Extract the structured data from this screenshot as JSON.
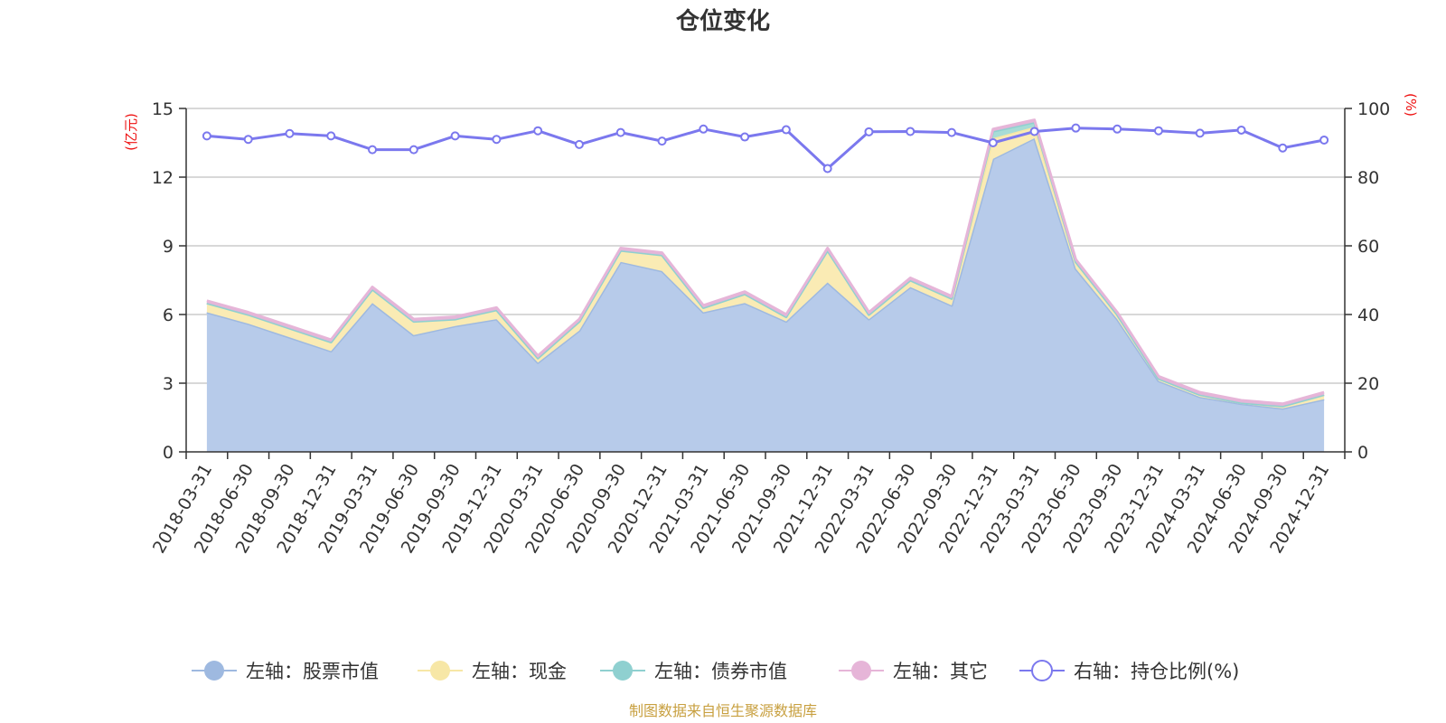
{
  "colors": {
    "stock": "#9eb9e0",
    "stock_fill": "#b7cbea",
    "cash": "#f7e7a6",
    "cash_fill": "#faebb4",
    "bond": "#8fd0d0",
    "bond_fill": "#a7dcd6",
    "other": "#e6b5d8",
    "ratio": "#7b78ee",
    "unit": "#ee1111",
    "source": "#c8a040"
  },
  "chart_data": {
    "type": "area",
    "title": "仓位变化",
    "left_axis": {
      "unit": "(亿元)",
      "min": 0,
      "max": 15,
      "ticks": [
        0,
        3,
        6,
        9,
        12,
        15
      ]
    },
    "right_axis": {
      "unit": "(%)",
      "min": 0,
      "max": 100,
      "ticks": [
        0,
        20,
        40,
        60,
        80,
        100
      ]
    },
    "categories": [
      "2018-03-31",
      "2018-06-30",
      "2018-09-30",
      "2018-12-31",
      "2019-03-31",
      "2019-06-30",
      "2019-09-30",
      "2019-12-31",
      "2020-03-31",
      "2020-06-30",
      "2020-09-30",
      "2020-12-31",
      "2021-03-31",
      "2021-06-30",
      "2021-09-30",
      "2021-12-31",
      "2022-03-31",
      "2022-06-30",
      "2022-09-30",
      "2022-12-31",
      "2023-03-31",
      "2023-06-30",
      "2023-09-30",
      "2023-12-31",
      "2024-03-31",
      "2024-06-30",
      "2024-09-30",
      "2024-12-31"
    ],
    "series": [
      {
        "key": "stock",
        "name": "左轴：股票市值",
        "axis": "left",
        "stack": true,
        "values": [
          6.1,
          5.6,
          5.0,
          4.4,
          6.5,
          5.1,
          5.5,
          5.8,
          3.9,
          5.3,
          8.3,
          7.9,
          6.1,
          6.5,
          5.7,
          7.4,
          5.8,
          7.2,
          6.4,
          12.8,
          13.7,
          8.0,
          5.8,
          3.1,
          2.4,
          2.1,
          1.9,
          2.3
        ]
      },
      {
        "key": "cash",
        "name": "左轴：现金",
        "axis": "left",
        "stack": true,
        "values": [
          0.4,
          0.4,
          0.4,
          0.4,
          0.6,
          0.6,
          0.3,
          0.4,
          0.2,
          0.4,
          0.5,
          0.7,
          0.2,
          0.4,
          0.2,
          1.4,
          0.2,
          0.3,
          0.3,
          0.9,
          0.5,
          0.3,
          0.2,
          0.1,
          0.1,
          0.05,
          0.1,
          0.2
        ]
      },
      {
        "key": "bond",
        "name": "左轴：债券市值",
        "axis": "left",
        "stack": true,
        "values": [
          0,
          0,
          0,
          0,
          0,
          0,
          0,
          0,
          0,
          0,
          0,
          0,
          0,
          0,
          0,
          0,
          0,
          0,
          0,
          0.3,
          0.2,
          0,
          0,
          0,
          0,
          0,
          0,
          0
        ]
      },
      {
        "key": "other",
        "name": "左轴：其它",
        "axis": "left",
        "stack": true,
        "values": [
          0.1,
          0.1,
          0.1,
          0.1,
          0.1,
          0.1,
          0.1,
          0.1,
          0.1,
          0.1,
          0.1,
          0.1,
          0.1,
          0.1,
          0.1,
          0.1,
          0.1,
          0.1,
          0.1,
          0.1,
          0.1,
          0.1,
          0.1,
          0.1,
          0.1,
          0.1,
          0.1,
          0.1
        ]
      },
      {
        "key": "ratio",
        "name": "右轴：持仓比例(%)",
        "axis": "right",
        "stack": false,
        "values": [
          92.0,
          91.0,
          92.7,
          92.0,
          88.0,
          88.0,
          92.0,
          91.0,
          93.5,
          89.5,
          93.0,
          90.5,
          94.0,
          91.7,
          93.8,
          82.5,
          93.2,
          93.3,
          93.0,
          90.0,
          93.3,
          94.3,
          94.0,
          93.5,
          92.8,
          93.7,
          88.5,
          90.8
        ]
      }
    ]
  },
  "footer": {
    "source": "制图数据来自恒生聚源数据库"
  }
}
